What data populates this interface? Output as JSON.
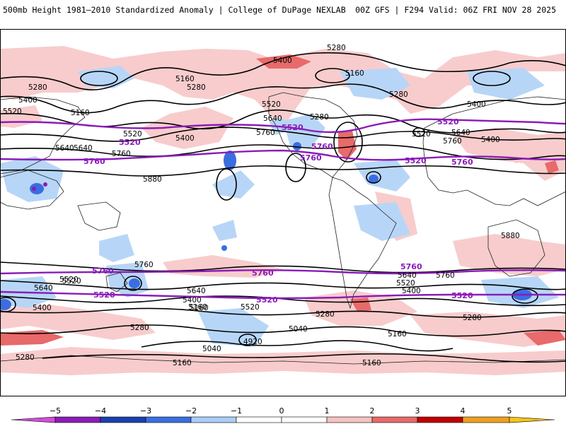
{
  "header": {
    "title": "500mb Height 1981–2010 Standardized Anomaly | College of DuPage NEXLAB",
    "run_info": "00Z GFS | F294 Valid: 06Z FRI NOV 28 2025"
  },
  "colorbar": {
    "ticks": [
      "−5",
      "−4",
      "−3",
      "−2",
      "−1",
      "0",
      "1",
      "2",
      "3",
      "4",
      "5"
    ],
    "colors": [
      "#d24fd8",
      "#8a1cb8",
      "#1c3fb0",
      "#3a6ee0",
      "#a9cdf5",
      "#ffffff",
      "#ffffff",
      "#f6c2c2",
      "#e86a6a",
      "#c00000",
      "#f0a020",
      "#f5c518"
    ]
  },
  "map": {
    "height_labels": [
      "5280",
      "5400",
      "5160",
      "5280",
      "5400",
      "5160",
      "5520",
      "5640",
      "5280",
      "5520",
      "5280",
      "5400",
      "5640",
      "5400",
      "5160",
      "5280",
      "5520",
      "5400",
      "5640",
      "5760",
      "5880",
      "5520",
      "5640",
      "5760",
      "5880",
      "5760",
      "5760",
      "5520",
      "5640",
      "5400",
      "5160",
      "5640",
      "5400",
      "5280",
      "5520",
      "5400",
      "5640",
      "5760",
      "5520",
      "5160",
      "5280",
      "5040",
      "4920",
      "5040",
      "5160",
      "5280",
      "5160",
      "5280",
      "5160",
      "5520"
    ],
    "highlight_labels": [
      "5520",
      "5760",
      "5520",
      "5760",
      "5520",
      "5760",
      "5520",
      "5760",
      "5760",
      "5760",
      "5520",
      "5520",
      "5520",
      "5760"
    ]
  }
}
